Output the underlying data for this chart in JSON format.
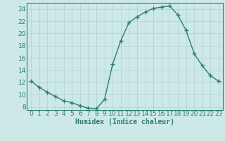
{
  "x": [
    0,
    1,
    2,
    3,
    4,
    5,
    6,
    7,
    8,
    9,
    10,
    11,
    12,
    13,
    14,
    15,
    16,
    17,
    18,
    19,
    20,
    21,
    22,
    23
  ],
  "y": [
    12.2,
    11.2,
    10.4,
    9.7,
    9.0,
    8.7,
    8.2,
    7.8,
    7.7,
    9.2,
    15.0,
    18.8,
    21.8,
    22.7,
    23.5,
    24.1,
    24.3,
    24.5,
    23.0,
    20.5,
    16.7,
    14.7,
    13.1,
    12.2
  ],
  "line_color": "#2e7d6e",
  "marker": "+",
  "marker_size": 4,
  "marker_linewidth": 1.0,
  "bg_color": "#cce9e7",
  "grid_color": "#b0d0ce",
  "xlabel": "Humidex (Indice chaleur)",
  "xlim": [
    -0.5,
    23.5
  ],
  "ylim": [
    7.5,
    25.0
  ],
  "yticks": [
    8,
    10,
    12,
    14,
    16,
    18,
    20,
    22,
    24
  ],
  "xticks": [
    0,
    1,
    2,
    3,
    4,
    5,
    6,
    7,
    8,
    9,
    10,
    11,
    12,
    13,
    14,
    15,
    16,
    17,
    18,
    19,
    20,
    21,
    22,
    23
  ],
  "axis_color": "#2e7d6e",
  "tick_color": "#2e7d6e",
  "font_size": 6.5,
  "xlabel_fontsize": 7.0,
  "linewidth": 1.0
}
